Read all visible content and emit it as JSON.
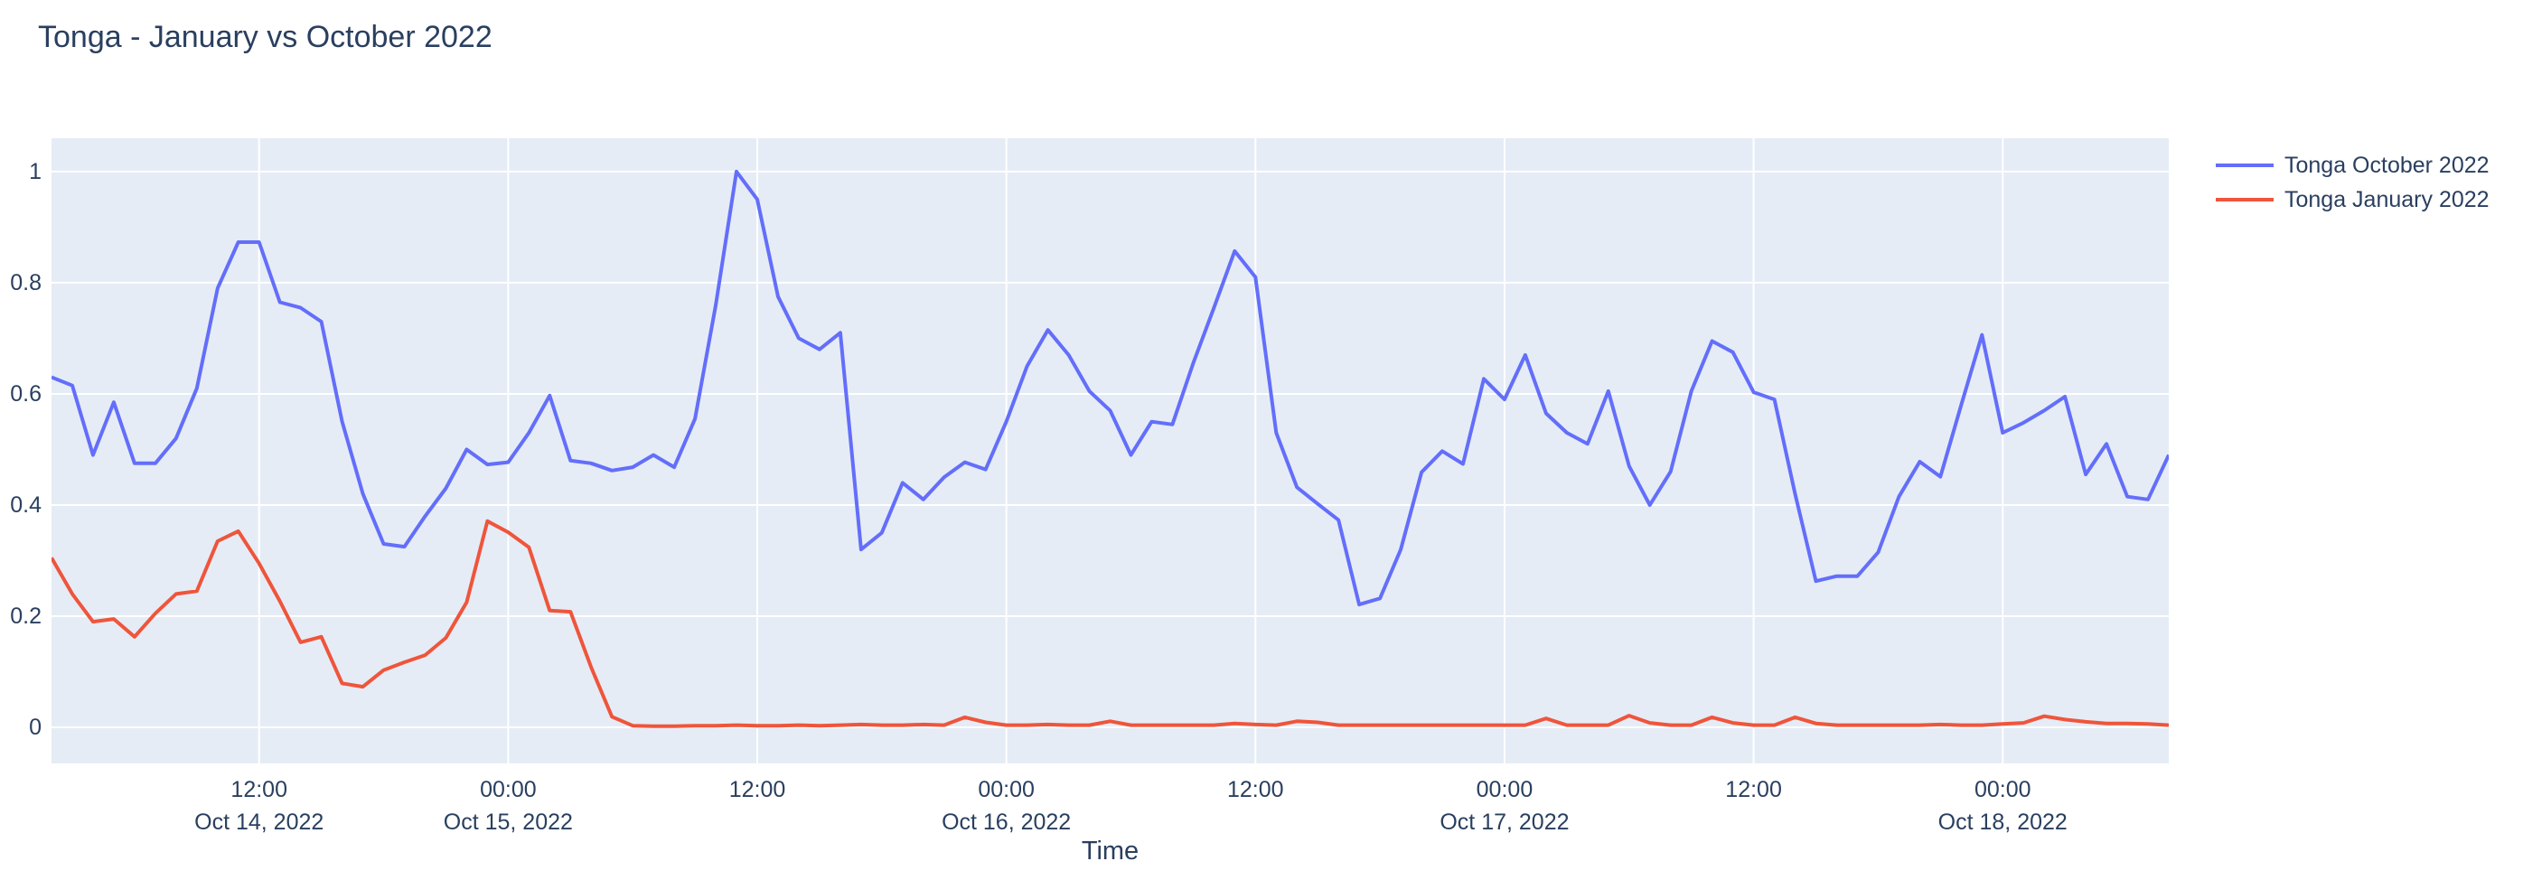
{
  "page": {
    "background": "#ffffff"
  },
  "header": {
    "title": "Tonga - January vs October 2022"
  },
  "chart_data": {
    "type": "line",
    "title": "Tonga - January vs October 2022",
    "xlabel": "Time",
    "ylabel": "",
    "x_start": "2022-10-14 02:00",
    "x_step": "1 hour",
    "x_range_hours": [
      0,
      102
    ],
    "ylim": [
      -0.065,
      1.06
    ],
    "grid": true,
    "plot_bg": "#e5ecf6",
    "grid_color": "#ffffff",
    "text_color": "#2a3f5f",
    "legend_position": "outside-top-right",
    "y_ticks": [
      {
        "v": 0,
        "label": "0"
      },
      {
        "v": 0.2,
        "label": "0.2"
      },
      {
        "v": 0.4,
        "label": "0.4"
      },
      {
        "v": 0.6,
        "label": "0.6"
      },
      {
        "v": 0.8,
        "label": "0.8"
      },
      {
        "v": 1,
        "label": "1"
      }
    ],
    "x_ticks": [
      {
        "t": 10,
        "time": "12:00",
        "date": "Oct 14, 2022"
      },
      {
        "t": 22,
        "time": "00:00",
        "date": "Oct 15, 2022"
      },
      {
        "t": 34,
        "time": "12:00",
        "date": ""
      },
      {
        "t": 46,
        "time": "00:00",
        "date": "Oct 16, 2022"
      },
      {
        "t": 58,
        "time": "12:00",
        "date": ""
      },
      {
        "t": 70,
        "time": "00:00",
        "date": "Oct 17, 2022"
      },
      {
        "t": 82,
        "time": "12:00",
        "date": ""
      },
      {
        "t": 94,
        "time": "00:00",
        "date": "Oct 18, 2022"
      }
    ],
    "series": [
      {
        "name": "Tonga October 2022",
        "color": "#636efa",
        "values": [
          0.63,
          0.615,
          0.49,
          0.585,
          0.475,
          0.475,
          0.52,
          0.61,
          0.79,
          0.873,
          0.873,
          0.765,
          0.755,
          0.73,
          0.55,
          0.42,
          0.33,
          0.325,
          0.38,
          0.43,
          0.5,
          0.473,
          0.477,
          0.53,
          0.597,
          0.48,
          0.475,
          0.462,
          0.468,
          0.49,
          0.468,
          0.555,
          0.76,
          1.0,
          0.95,
          0.775,
          0.7,
          0.68,
          0.71,
          0.32,
          0.35,
          0.44,
          0.41,
          0.45,
          0.477,
          0.464,
          0.55,
          0.65,
          0.715,
          0.67,
          0.605,
          0.57,
          0.49,
          0.55,
          0.545,
          0.655,
          0.755,
          0.857,
          0.81,
          0.53,
          0.432,
          0.402,
          0.373,
          0.221,
          0.232,
          0.32,
          0.459,
          0.497,
          0.474,
          0.627,
          0.59,
          0.67,
          0.565,
          0.53,
          0.51,
          0.605,
          0.47,
          0.4,
          0.46,
          0.605,
          0.695,
          0.675,
          0.603,
          0.59,
          0.42,
          0.263,
          0.272,
          0.272,
          0.315,
          0.415,
          0.478,
          0.451,
          0.58,
          0.706,
          0.53,
          0.548,
          0.57,
          0.595,
          0.455,
          0.51,
          0.415,
          0.41,
          0.49
        ]
      },
      {
        "name": "Tonga January 2022",
        "color": "#ef553b",
        "values": [
          0.305,
          0.24,
          0.19,
          0.195,
          0.163,
          0.205,
          0.24,
          0.245,
          0.335,
          0.353,
          0.295,
          0.227,
          0.153,
          0.163,
          0.079,
          0.073,
          0.103,
          0.117,
          0.13,
          0.161,
          0.225,
          0.371,
          0.351,
          0.324,
          0.21,
          0.208,
          0.108,
          0.019,
          0.003,
          0.002,
          0.002,
          0.003,
          0.003,
          0.004,
          0.003,
          0.003,
          0.004,
          0.003,
          0.004,
          0.005,
          0.004,
          0.004,
          0.005,
          0.004,
          0.018,
          0.009,
          0.004,
          0.004,
          0.005,
          0.004,
          0.004,
          0.011,
          0.004,
          0.004,
          0.004,
          0.004,
          0.004,
          0.007,
          0.005,
          0.004,
          0.011,
          0.009,
          0.004,
          0.004,
          0.004,
          0.004,
          0.004,
          0.004,
          0.004,
          0.004,
          0.004,
          0.004,
          0.016,
          0.004,
          0.004,
          0.004,
          0.021,
          0.008,
          0.004,
          0.004,
          0.018,
          0.008,
          0.004,
          0.004,
          0.018,
          0.007,
          0.004,
          0.004,
          0.004,
          0.004,
          0.004,
          0.005,
          0.004,
          0.004,
          0.006,
          0.008,
          0.02,
          0.014,
          0.01,
          0.007,
          0.007,
          0.006,
          0.004
        ]
      }
    ]
  }
}
